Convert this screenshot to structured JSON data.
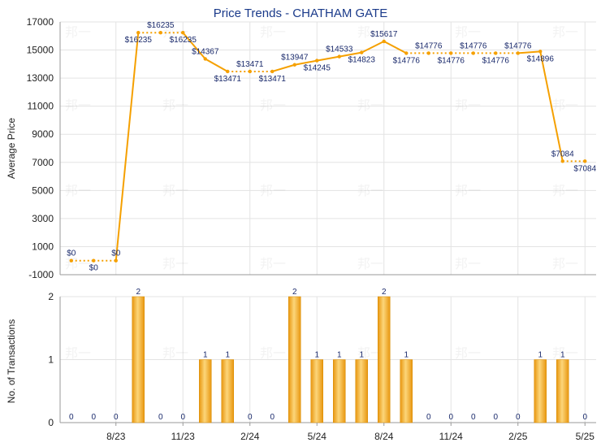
{
  "chart_data": [
    {
      "type": "line",
      "title": "Price Trends - CHATHAM GATE",
      "ylabel": "Average Price",
      "ylim": [
        -1000,
        17000
      ],
      "yticks": [
        -1000,
        1000,
        3000,
        5000,
        7000,
        9000,
        11000,
        13000,
        15000,
        17000
      ],
      "grid": true,
      "line_color": "#f5a000",
      "x": [
        "6/23",
        "7/23",
        "8/23",
        "9/23",
        "10/23",
        "11/23",
        "12/23",
        "1/24",
        "2/24",
        "3/24",
        "4/24",
        "5/24",
        "6/24",
        "7/24",
        "8/24",
        "9/24",
        "10/24",
        "11/24",
        "12/24",
        "1/25",
        "2/25",
        "3/25",
        "4/25",
        "5/25"
      ],
      "values": [
        0,
        0,
        0,
        16235,
        16235,
        16235,
        14367,
        13471,
        13471,
        13471,
        13947,
        14245,
        14533,
        14823,
        15617,
        14776,
        14776,
        14776,
        14776,
        14776,
        14776,
        14896,
        7084,
        7084
      ],
      "labels": [
        "$0",
        "$0",
        "$0",
        "$16235",
        "$16235",
        "$16235",
        "$14367",
        "$13471",
        "$13471",
        "$13471",
        "$13947",
        "$14245",
        "$14533",
        "$14823",
        "$15617",
        "$14776",
        "$14776",
        "$14776",
        "$14776",
        "$14776",
        "$14776",
        "$14896",
        "$7084",
        "$7084"
      ]
    },
    {
      "type": "bar",
      "ylabel": "No. of Transactions",
      "ylim": [
        0,
        2
      ],
      "yticks": [
        0,
        1,
        2
      ],
      "grid": true,
      "bar_color": "#f5a623",
      "x": [
        "6/23",
        "7/23",
        "8/23",
        "9/23",
        "10/23",
        "11/23",
        "12/23",
        "1/24",
        "2/24",
        "3/24",
        "4/24",
        "5/24",
        "6/24",
        "7/24",
        "8/24",
        "9/24",
        "10/24",
        "11/24",
        "12/24",
        "1/25",
        "2/25",
        "3/25",
        "4/25",
        "5/25"
      ],
      "values": [
        0,
        0,
        0,
        2,
        0,
        0,
        1,
        1,
        0,
        0,
        2,
        1,
        1,
        1,
        2,
        1,
        0,
        0,
        0,
        0,
        0,
        1,
        1,
        0
      ],
      "xtick_labels": [
        "8/23",
        "11/23",
        "2/24",
        "5/24",
        "8/24",
        "11/24",
        "2/25",
        "5/25"
      ]
    }
  ],
  "watermark": "邦一"
}
